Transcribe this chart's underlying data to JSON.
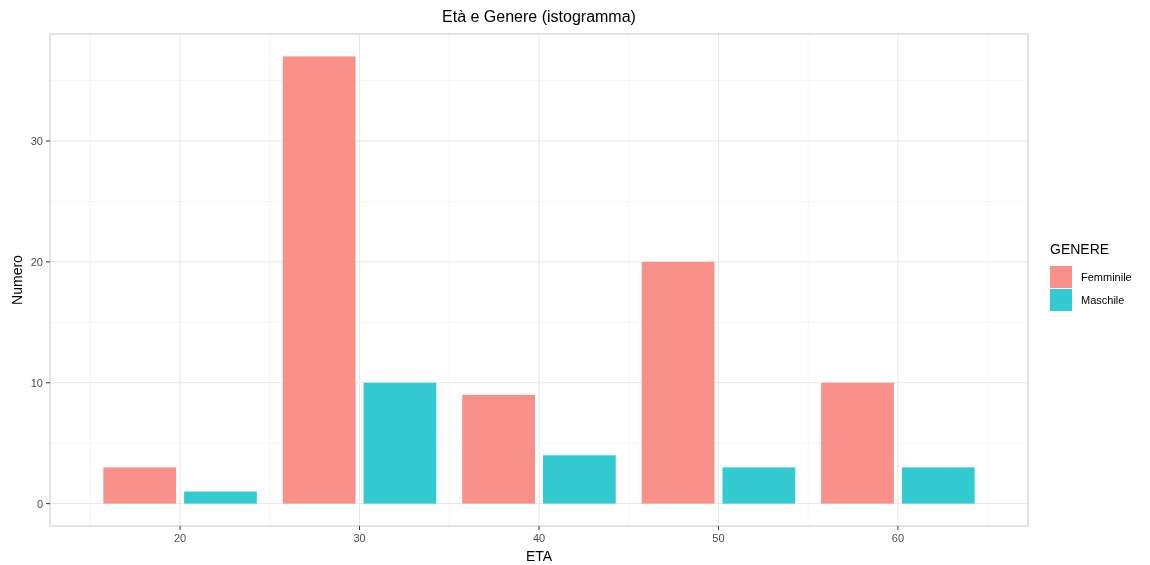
{
  "chart_data": {
    "type": "histogram",
    "title": "Età e Genere (istogramma)",
    "xlabel": "ETA",
    "ylabel": "Numero",
    "legend_title": "GENERE",
    "bins": [
      15,
      25,
      35,
      45,
      55,
      65
    ],
    "series": [
      {
        "name": "Femminile",
        "color": "#f9918a",
        "values": [
          3,
          37,
          9,
          20,
          10
        ]
      },
      {
        "name": "Maschile",
        "color": "#33cbd1",
        "values": [
          1,
          10,
          4,
          3,
          3
        ]
      }
    ],
    "xlim": [
      12.75,
      67.25
    ],
    "xticks": [
      20,
      30,
      40,
      50,
      60
    ],
    "ylim": [
      -1.85,
      38.85
    ],
    "yticks": [
      0,
      10,
      20,
      30
    ],
    "grid": true,
    "legend": "right"
  }
}
